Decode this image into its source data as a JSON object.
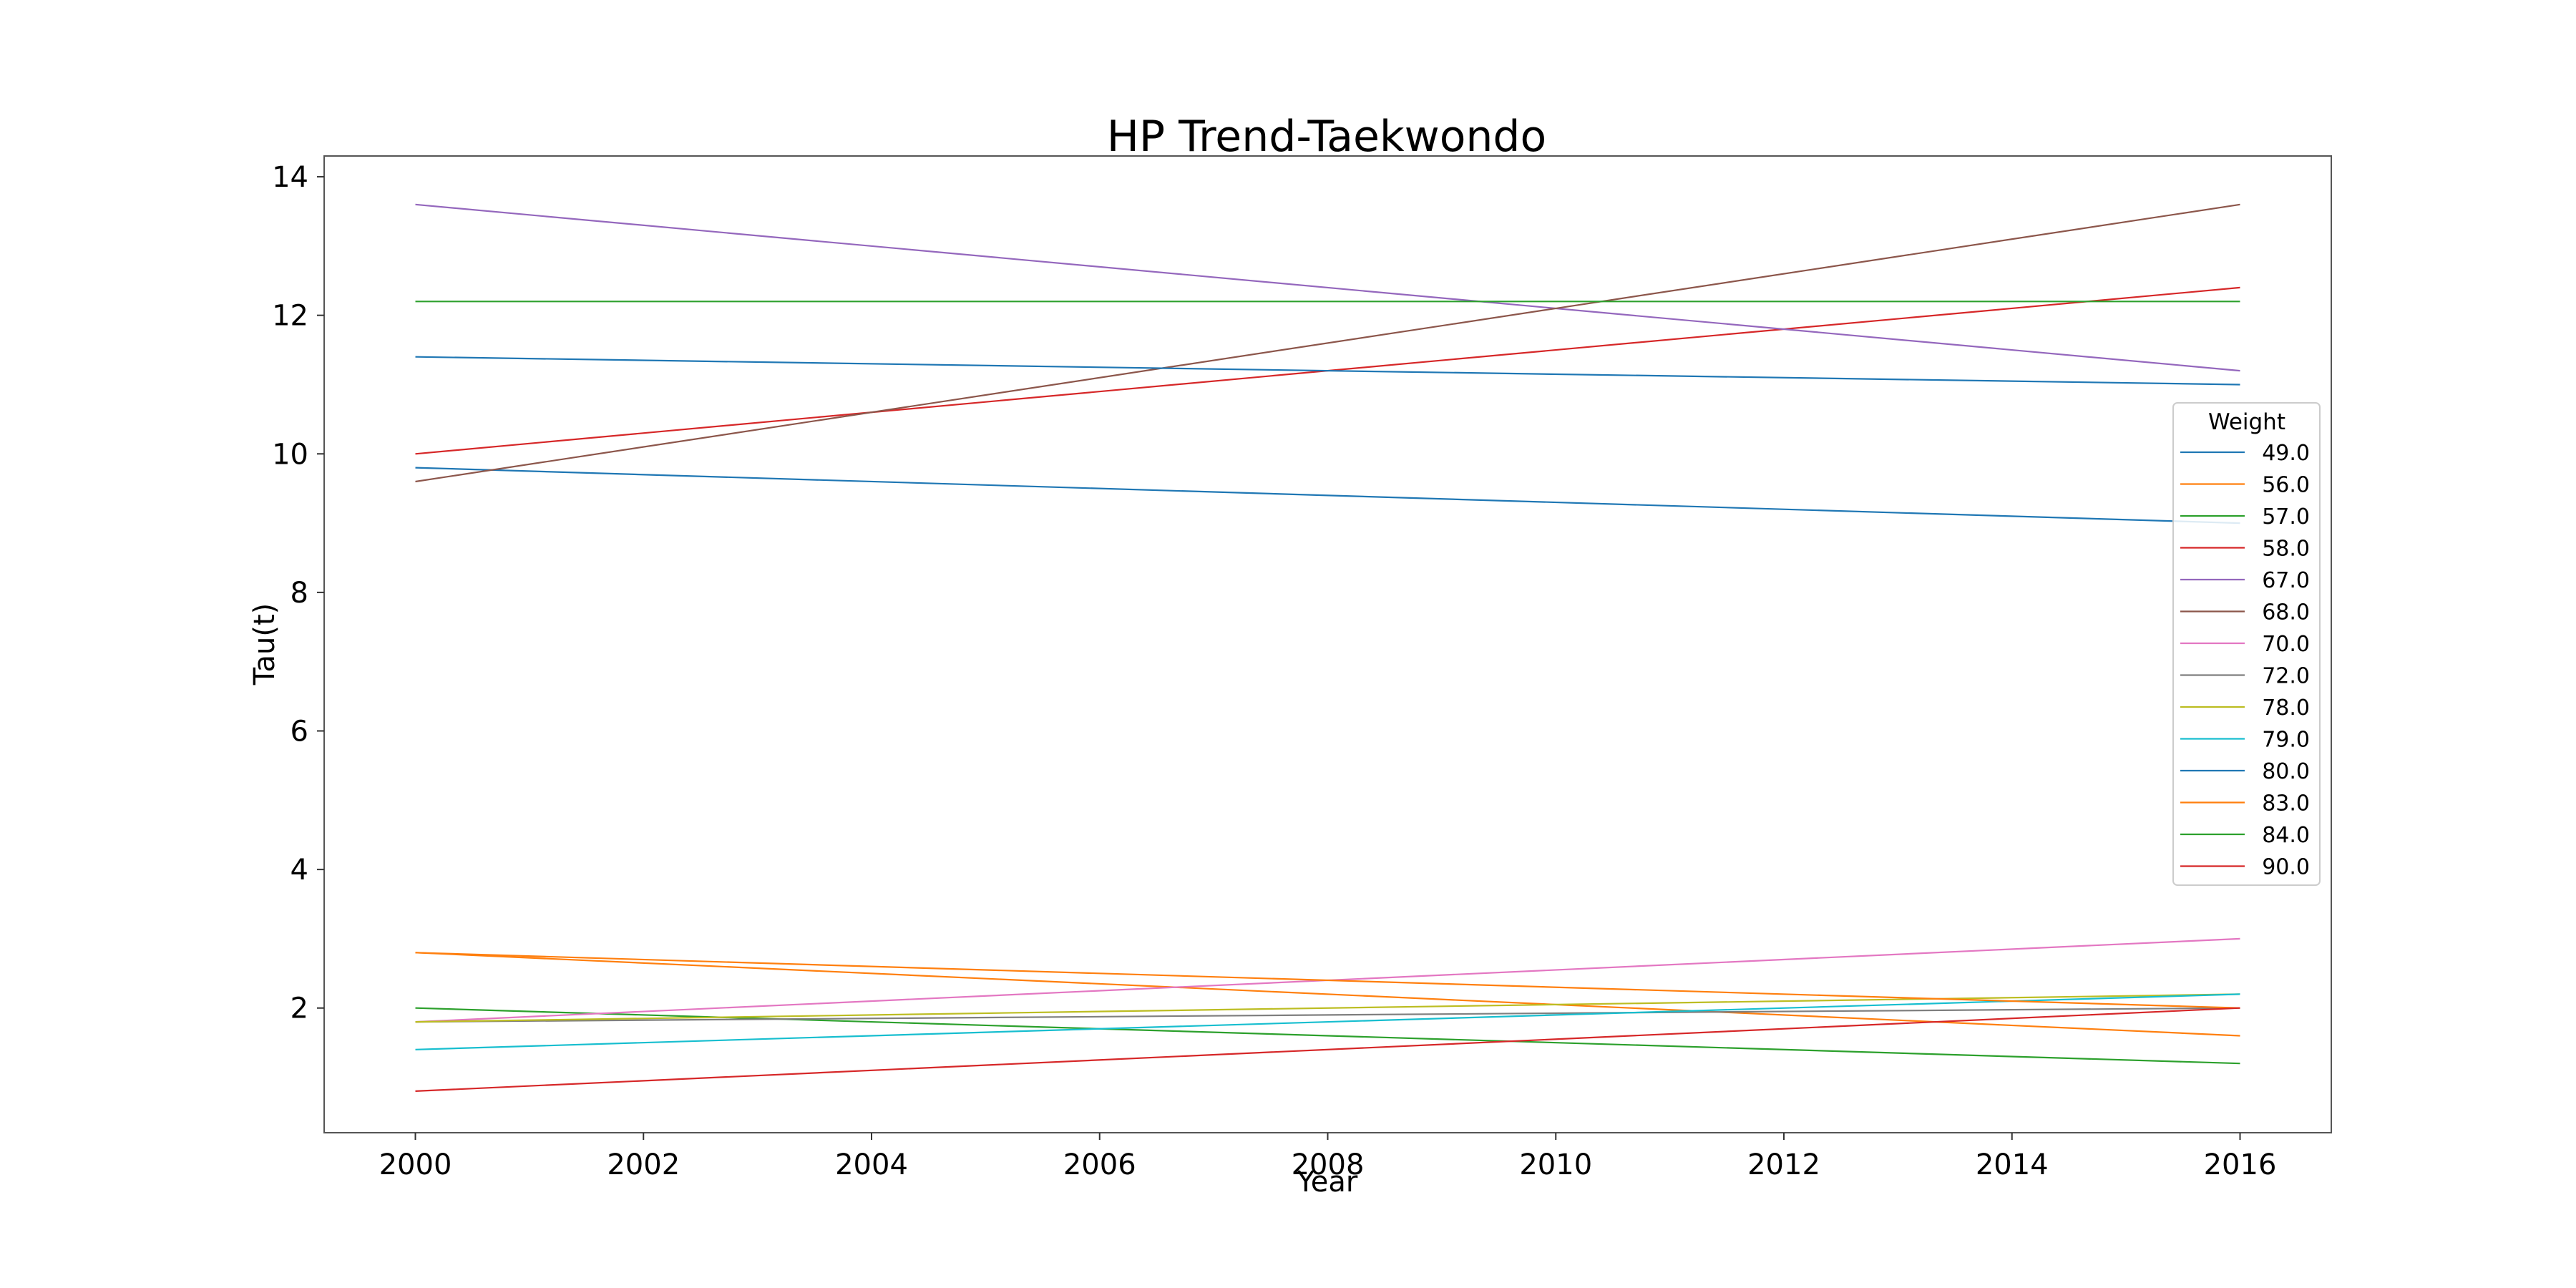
{
  "chart_data": {
    "type": "line",
    "title": "HP Trend-Taekwondo",
    "xlabel": "Year",
    "ylabel": "Tau(t)",
    "xlim": [
      1999.2,
      2016.8
    ],
    "ylim": [
      0.2,
      14.3
    ],
    "xticks": [
      2000,
      2002,
      2004,
      2006,
      2008,
      2010,
      2012,
      2014,
      2016
    ],
    "yticks": [
      2,
      4,
      6,
      8,
      10,
      12,
      14
    ],
    "legend_title": "Weight",
    "legend_position": "center-right",
    "x": [
      2000,
      2016
    ],
    "series": [
      {
        "name": "49.0",
        "color": "#1f77b4",
        "values": [
          9.8,
          9.0
        ]
      },
      {
        "name": "56.0",
        "color": "#ff7f0e",
        "values": [
          2.8,
          1.6
        ]
      },
      {
        "name": "57.0",
        "color": "#2ca02c",
        "values": [
          2.0,
          1.2
        ]
      },
      {
        "name": "58.0",
        "color": "#d62728",
        "values": [
          10.0,
          12.4
        ]
      },
      {
        "name": "67.0",
        "color": "#9467bd",
        "values": [
          13.6,
          11.2
        ]
      },
      {
        "name": "68.0",
        "color": "#8c564b",
        "values": [
          9.6,
          13.6
        ]
      },
      {
        "name": "70.0",
        "color": "#e377c2",
        "values": [
          1.8,
          3.0
        ]
      },
      {
        "name": "72.0",
        "color": "#7f7f7f",
        "values": [
          1.8,
          2.0
        ]
      },
      {
        "name": "78.0",
        "color": "#bcbd22",
        "values": [
          1.8,
          2.2
        ]
      },
      {
        "name": "79.0",
        "color": "#17becf",
        "values": [
          1.4,
          2.2
        ]
      },
      {
        "name": "80.0",
        "color": "#1f77b4",
        "values": [
          11.4,
          11.0
        ]
      },
      {
        "name": "83.0",
        "color": "#ff7f0e",
        "values": [
          2.8,
          2.0
        ]
      },
      {
        "name": "84.0",
        "color": "#2ca02c",
        "values": [
          12.2,
          12.2
        ]
      },
      {
        "name": "90.0",
        "color": "#d62728",
        "values": [
          0.8,
          2.0
        ]
      }
    ]
  }
}
